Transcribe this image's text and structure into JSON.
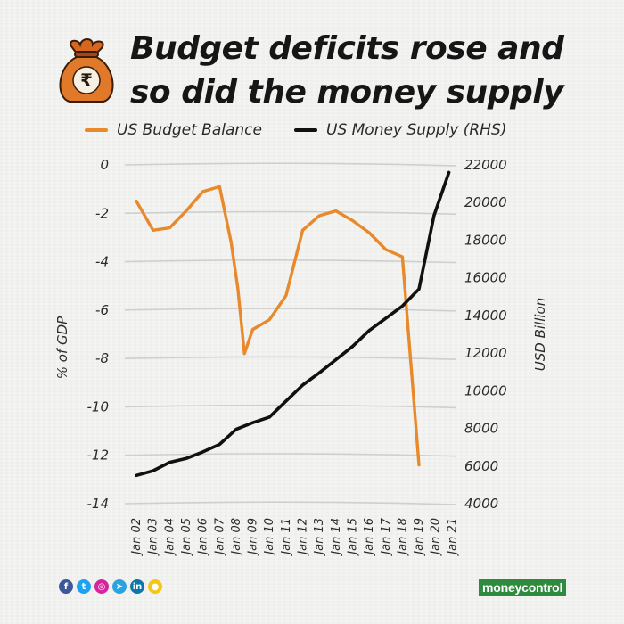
{
  "title": {
    "line1": "Budget deficits rose and",
    "line2": "so did the money supply"
  },
  "icons": {
    "bag": "rupee-money-bag-icon"
  },
  "colors": {
    "budget": "#e8892b",
    "money": "#111111",
    "grid": "#cfcfcf",
    "brand": "#2e8b3e"
  },
  "legend": {
    "budget_label": "US Budget Balance",
    "money_label": "US Money Supply (RHS)"
  },
  "chart_data": {
    "type": "line",
    "x": [
      "Jan 02",
      "Jan 03",
      "Jan 04",
      "Jan 05",
      "Jan 06",
      "Jan 07",
      "Jan 08",
      "Jan 09",
      "Jan 10",
      "Jan 11",
      "Jan 12",
      "Jan 13",
      "Jan 14",
      "Jan 15",
      "Jan 16",
      "Jan 17",
      "Jan 18",
      "Jan 19",
      "Jan 20",
      "Jan 21"
    ],
    "ylabel_left": "% of GDP",
    "ylabel_right": "USD Billion",
    "ylim_left": [
      -14,
      0
    ],
    "ylim_right": [
      4000,
      22000
    ],
    "yticks_left": [
      0,
      -2,
      -4,
      -6,
      -8,
      -10,
      -12,
      -14
    ],
    "yticks_right": [
      22000,
      20000,
      18000,
      16000,
      14000,
      12000,
      10000,
      8000,
      6000,
      4000
    ],
    "grid": true,
    "legend_position": "top",
    "series": [
      {
        "name": "US Budget Balance",
        "axis": "left",
        "points": [
          {
            "x": 0,
            "y": -1.5
          },
          {
            "x": 1,
            "y": -2.7
          },
          {
            "x": 2,
            "y": -2.6
          },
          {
            "x": 3,
            "y": -1.9
          },
          {
            "x": 4,
            "y": -1.1
          },
          {
            "x": 5,
            "y": -0.9
          },
          {
            "x": 5.7,
            "y": -3.2
          },
          {
            "x": 6.1,
            "y": -5.1
          },
          {
            "x": 6.5,
            "y": -7.8
          },
          {
            "x": 7,
            "y": -6.8
          },
          {
            "x": 8,
            "y": -6.4
          },
          {
            "x": 9,
            "y": -5.4
          },
          {
            "x": 10,
            "y": -2.7
          },
          {
            "x": 11,
            "y": -2.1
          },
          {
            "x": 12,
            "y": -1.9
          },
          {
            "x": 13,
            "y": -2.3
          },
          {
            "x": 14,
            "y": -2.8
          },
          {
            "x": 15,
            "y": -3.5
          },
          {
            "x": 16,
            "y": -3.8
          },
          {
            "x": 17,
            "y": -12.4
          }
        ]
      },
      {
        "name": "US Money Supply (RHS)",
        "axis": "right",
        "points": [
          {
            "x": 0,
            "y": 5500
          },
          {
            "x": 1,
            "y": 5750
          },
          {
            "x": 2,
            "y": 6200
          },
          {
            "x": 3,
            "y": 6400
          },
          {
            "x": 4,
            "y": 6750
          },
          {
            "x": 5,
            "y": 7150
          },
          {
            "x": 6,
            "y": 7950
          },
          {
            "x": 7,
            "y": 8300
          },
          {
            "x": 8,
            "y": 8600
          },
          {
            "x": 9,
            "y": 9450
          },
          {
            "x": 10,
            "y": 10300
          },
          {
            "x": 11,
            "y": 10950
          },
          {
            "x": 12,
            "y": 11650
          },
          {
            "x": 13,
            "y": 12350
          },
          {
            "x": 14,
            "y": 13200
          },
          {
            "x": 15,
            "y": 13850
          },
          {
            "x": 16,
            "y": 14500
          },
          {
            "x": 17,
            "y": 15400
          },
          {
            "x": 17.9,
            "y": 19300
          },
          {
            "x": 18.8,
            "y": 21600
          }
        ]
      }
    ]
  },
  "footer": {
    "social_icons": [
      {
        "name": "facebook-icon",
        "glyph": "f",
        "color": "#3b5998"
      },
      {
        "name": "twitter-icon",
        "glyph": "t",
        "color": "#1da1f2"
      },
      {
        "name": "instagram-icon",
        "glyph": "◎",
        "color": "#d6249f"
      },
      {
        "name": "telegram-icon",
        "glyph": "➤",
        "color": "#2aa3df"
      },
      {
        "name": "linkedin-icon",
        "glyph": "in",
        "color": "#0e76a8"
      },
      {
        "name": "koo-icon",
        "glyph": "●",
        "color": "#f5c518"
      }
    ],
    "brand": "moneycontrol"
  }
}
